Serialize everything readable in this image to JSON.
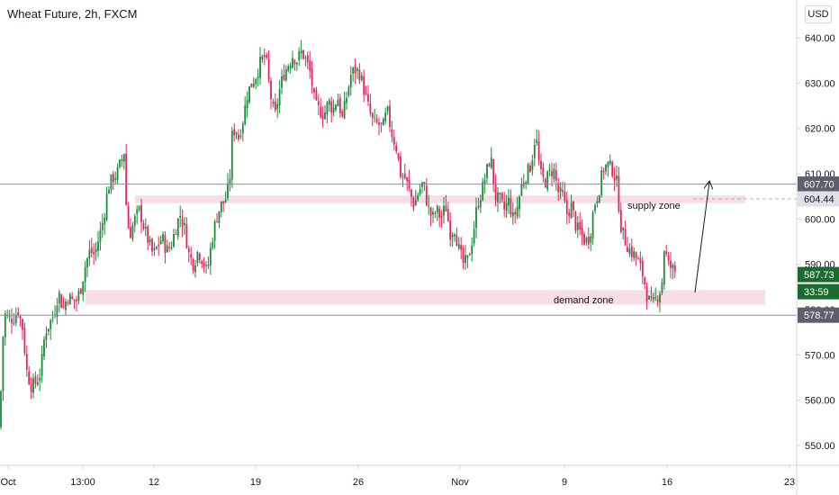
{
  "header": {
    "title": "Wheat Future, 2h, FXCM",
    "currency": "USD"
  },
  "colors": {
    "up": "#1b8a3a",
    "down": "#e0245e",
    "zone": "#f7dde5",
    "line": "#8b8e98",
    "axis": "#d1d4dc",
    "text": "#131722"
  },
  "chart_data": {
    "type": "candlestick",
    "title": "Wheat Future, 2h, FXCM",
    "xlabel": "",
    "ylabel": "",
    "ylim": [
      544,
      648
    ],
    "x_tick_labels": [
      "Oct",
      "13:00",
      "12",
      "19",
      "26",
      "Nov",
      "9",
      "16",
      "23"
    ],
    "y_ticks": [
      550,
      560,
      570,
      580,
      590,
      600,
      610,
      620,
      630,
      640
    ],
    "y_tick_labels": [
      "550.00",
      "560.00",
      "570.00",
      "580.00",
      "590.00",
      "600.00",
      "610.00",
      "620.00",
      "630.00",
      "640.00"
    ],
    "close_path": [
      [
        0,
        554
      ],
      [
        2,
        570
      ],
      [
        5,
        579
      ],
      [
        10,
        578
      ],
      [
        15,
        578
      ],
      [
        20,
        580
      ],
      [
        25,
        576
      ],
      [
        30,
        566
      ],
      [
        35,
        563
      ],
      [
        40,
        564
      ],
      [
        45,
        566
      ],
      [
        50,
        575
      ],
      [
        55,
        577
      ],
      [
        60,
        579
      ],
      [
        65,
        584
      ],
      [
        70,
        580
      ],
      [
        75,
        583
      ],
      [
        80,
        582
      ],
      [
        85,
        582
      ],
      [
        90,
        585
      ],
      [
        95,
        590
      ],
      [
        100,
        593
      ],
      [
        105,
        592
      ],
      [
        110,
        596
      ],
      [
        115,
        600
      ],
      [
        120,
        607
      ],
      [
        125,
        609
      ],
      [
        130,
        610
      ],
      [
        135,
        613
      ],
      [
        138,
        615
      ],
      [
        141,
        599
      ],
      [
        145,
        597
      ],
      [
        150,
        600
      ],
      [
        155,
        602
      ],
      [
        160,
        598
      ],
      [
        165,
        595
      ],
      [
        170,
        592
      ],
      [
        175,
        594
      ],
      [
        180,
        596
      ],
      [
        185,
        593
      ],
      [
        190,
        594
      ],
      [
        195,
        598
      ],
      [
        200,
        601
      ],
      [
        205,
        598
      ],
      [
        210,
        592
      ],
      [
        215,
        590
      ],
      [
        220,
        593
      ],
      [
        225,
        591
      ],
      [
        230,
        588
      ],
      [
        235,
        595
      ],
      [
        240,
        600
      ],
      [
        245,
        603
      ],
      [
        250,
        604
      ],
      [
        255,
        608
      ],
      [
        258,
        619
      ],
      [
        262,
        620
      ],
      [
        265,
        618
      ],
      [
        270,
        622
      ],
      [
        275,
        628
      ],
      [
        280,
        630
      ],
      [
        285,
        632
      ],
      [
        290,
        635
      ],
      [
        295,
        636
      ],
      [
        300,
        628
      ],
      [
        305,
        622
      ],
      [
        310,
        628
      ],
      [
        315,
        632
      ],
      [
        320,
        634
      ],
      [
        325,
        636
      ],
      [
        330,
        635
      ],
      [
        335,
        637
      ],
      [
        340,
        635
      ],
      [
        345,
        632
      ],
      [
        350,
        625
      ],
      [
        355,
        624
      ],
      [
        360,
        623
      ],
      [
        365,
        626
      ],
      [
        370,
        624
      ],
      [
        375,
        627
      ],
      [
        380,
        622
      ],
      [
        385,
        627
      ],
      [
        390,
        632
      ],
      [
        395,
        633
      ],
      [
        400,
        632
      ],
      [
        405,
        628
      ],
      [
        410,
        624
      ],
      [
        415,
        621
      ],
      [
        420,
        621
      ],
      [
        425,
        620
      ],
      [
        430,
        624
      ],
      [
        435,
        619
      ],
      [
        440,
        616
      ],
      [
        445,
        610
      ],
      [
        450,
        609
      ],
      [
        455,
        606
      ],
      [
        460,
        603
      ],
      [
        465,
        606
      ],
      [
        470,
        608
      ],
      [
        475,
        603
      ],
      [
        480,
        600
      ],
      [
        485,
        602
      ],
      [
        490,
        600
      ],
      [
        495,
        603
      ],
      [
        500,
        597
      ],
      [
        505,
        598
      ],
      [
        510,
        593
      ],
      [
        515,
        590
      ],
      [
        520,
        591
      ],
      [
        525,
        596
      ],
      [
        530,
        603
      ],
      [
        535,
        606
      ],
      [
        540,
        610
      ],
      [
        545,
        614
      ],
      [
        550,
        605
      ],
      [
        555,
        604
      ],
      [
        560,
        602
      ],
      [
        565,
        604
      ],
      [
        570,
        600
      ],
      [
        575,
        603
      ],
      [
        580,
        608
      ],
      [
        585,
        610
      ],
      [
        590,
        612
      ],
      [
        595,
        619
      ],
      [
        600,
        610
      ],
      [
        605,
        608
      ],
      [
        610,
        610
      ],
      [
        615,
        611
      ],
      [
        620,
        606
      ],
      [
        625,
        605
      ],
      [
        630,
        601
      ],
      [
        635,
        603
      ],
      [
        640,
        598
      ],
      [
        645,
        597
      ],
      [
        650,
        595
      ],
      [
        655,
        596
      ],
      [
        660,
        603
      ],
      [
        665,
        606
      ],
      [
        670,
        611
      ],
      [
        675,
        612
      ],
      [
        680,
        611
      ],
      [
        685,
        608
      ],
      [
        690,
        598
      ],
      [
        695,
        595
      ],
      [
        700,
        593
      ],
      [
        705,
        592
      ],
      [
        710,
        590
      ],
      [
        715,
        587
      ],
      [
        720,
        582
      ],
      [
        725,
        581
      ],
      [
        730,
        583
      ],
      [
        735,
        585
      ],
      [
        738,
        594
      ],
      [
        742,
        590
      ],
      [
        747,
        589
      ],
      [
        752,
        588
      ]
    ],
    "horizontal_lines": [
      {
        "value": 607.7,
        "label": "607.70"
      },
      {
        "value": 578.77,
        "label": "578.77"
      }
    ],
    "zones": [
      {
        "label": "supply zone",
        "from": 603.5,
        "to": 605.2,
        "start": 150,
        "end": 828
      },
      {
        "label": "demand zone",
        "from": 581.1,
        "to": 584.3,
        "start": 95,
        "end": 850
      }
    ],
    "price_badges": [
      {
        "label": "604.44",
        "value": 604.44,
        "style": "gray"
      },
      {
        "label": "587.73",
        "value": 587.73,
        "style": "green"
      },
      {
        "label": "33:59",
        "value": 583.0,
        "style": "green"
      }
    ],
    "projection_arrow": {
      "from": [
        772,
        583.8
      ],
      "to": [
        788,
        608.2
      ]
    }
  }
}
